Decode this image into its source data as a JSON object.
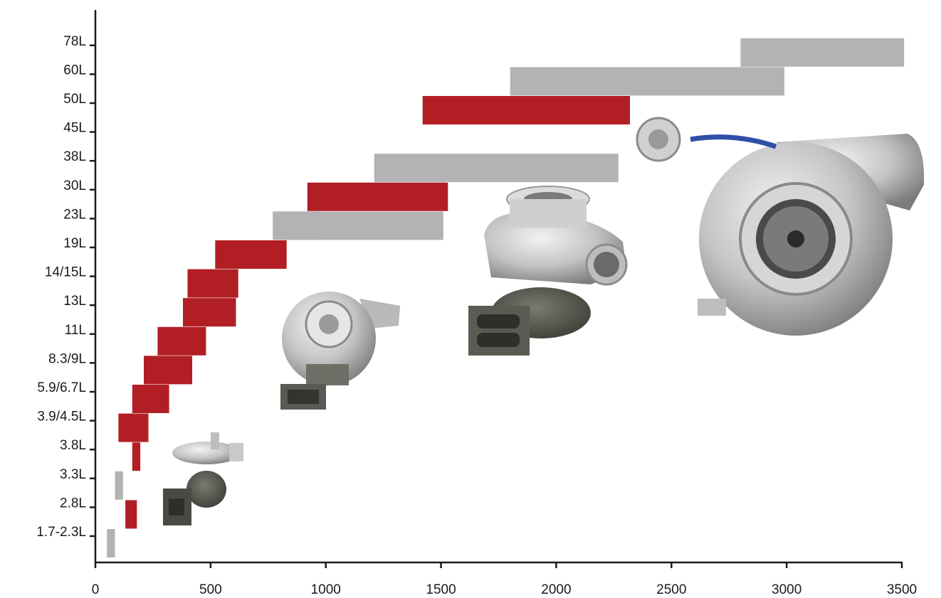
{
  "chart_data": {
    "type": "bar",
    "orientation": "horizontal-range",
    "title": "",
    "xlabel": "",
    "ylabel": "",
    "xlim": [
      0,
      3500
    ],
    "x_ticks": [
      "0",
      "500",
      "1000",
      "1500",
      "2000",
      "2500",
      "3000",
      "3500"
    ],
    "categories": [
      "1.7-2.3L",
      "2.8L",
      "3.3L",
      "3.8L",
      "3.9/4.5L",
      "5.9/6.7L",
      "8.3/9L",
      "11L",
      "13L",
      "14/15L",
      "19L",
      "23L",
      "30L",
      "38L",
      "45L",
      "50L",
      "60L",
      "78L"
    ],
    "series": [
      {
        "color": "#b11f24",
        "bars": [
          {
            "category": "2.8L",
            "start": 130,
            "end": 180
          },
          {
            "category": "3.8L",
            "start": 160,
            "end": 195
          },
          {
            "category": "3.9/4.5L",
            "start": 100,
            "end": 230
          },
          {
            "category": "5.9/6.7L",
            "start": 160,
            "end": 320
          },
          {
            "category": "8.3/9L",
            "start": 210,
            "end": 420
          },
          {
            "category": "11L",
            "start": 270,
            "end": 480
          },
          {
            "category": "13L",
            "start": 380,
            "end": 610
          },
          {
            "category": "14/15L",
            "start": 400,
            "end": 620
          },
          {
            "category": "19L",
            "start": 520,
            "end": 830
          },
          {
            "category": "30L",
            "start": 920,
            "end": 1530
          },
          {
            "category": "50L",
            "start": 1420,
            "end": 2320
          }
        ]
      },
      {
        "color": "#b3b3b3",
        "bars": [
          {
            "category": "1.7-2.3L",
            "start": 50,
            "end": 85
          },
          {
            "category": "3.3L",
            "start": 85,
            "end": 120
          },
          {
            "category": "23L",
            "start": 770,
            "end": 970
          },
          {
            "category": "23L",
            "start": 770,
            "end": 1510
          },
          {
            "category": "38L",
            "start": 1210,
            "end": 2270
          },
          {
            "category": "60L",
            "start": 1800,
            "end": 2990
          },
          {
            "category": "78L",
            "start": 2800,
            "end": 3510
          }
        ]
      }
    ],
    "grid": false,
    "legend": "none",
    "images": [
      {
        "name": "small-turbocharger-photo"
      },
      {
        "name": "medium-turbocharger-photo"
      },
      {
        "name": "large-turbocharger-photo"
      },
      {
        "name": "xl-turbocharger-photo"
      }
    ]
  }
}
